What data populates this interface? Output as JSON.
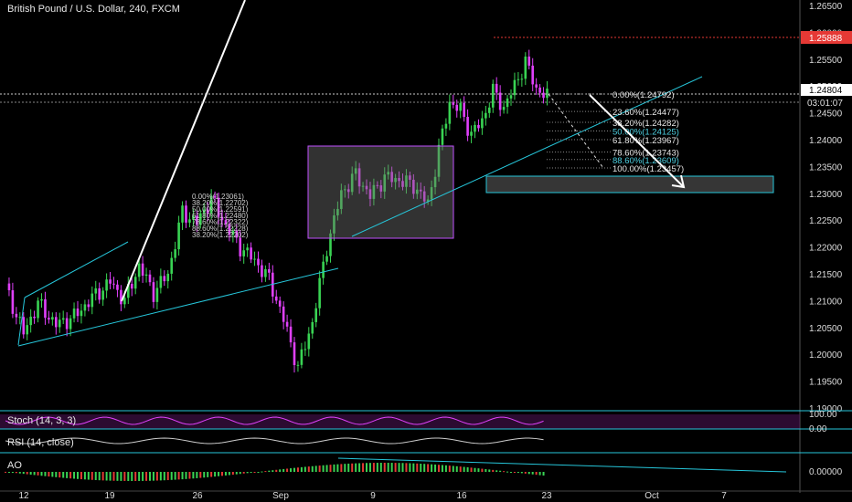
{
  "header": {
    "title": "British Pound / U.S. Dollar, 240, FXCM"
  },
  "price_axis": {
    "ticks": [
      "1.26500",
      "1.26000",
      "1.25500",
      "1.25000",
      "1.24500",
      "1.24000",
      "1.23500",
      "1.23000",
      "1.22500",
      "1.22000",
      "1.21500",
      "1.21000",
      "1.20500",
      "1.20000",
      "1.19500",
      "1.19000"
    ],
    "high_tag": "1.25888",
    "last_price_tag": "1.24804",
    "countdown_tag": "03:01:07",
    "high_color": "#e53935"
  },
  "time_axis": {
    "labels": [
      "12",
      "19",
      "26",
      "Sep",
      "9",
      "16",
      "23",
      "Oct",
      "7"
    ]
  },
  "fib_main": {
    "levels": [
      {
        "label": "0.00%(1.24792)",
        "ratio": 0.0
      },
      {
        "label": "23.60%(1.24477)",
        "ratio": 0.236
      },
      {
        "label": "38.20%(1.24282)",
        "ratio": 0.382
      },
      {
        "label": "50.00%(1.24125)",
        "ratio": 0.5
      },
      {
        "label": "61.80%(1.23967)",
        "ratio": 0.618
      },
      {
        "label": "78.60%(1.23743)",
        "ratio": 0.786
      },
      {
        "label": "88.60%(1.23609)",
        "ratio": 0.886
      },
      {
        "label": "100.00%(1.23457)",
        "ratio": 1.0
      }
    ],
    "highlight_color": "#4dd0e1"
  },
  "fib_old": {
    "levels": [
      "0.00%(1.23061)",
      "38.20%(1.22702)",
      "50.00%(1.22591)",
      "61.80%(1.22480)",
      "78.60%(1.22322)",
      "88.60%(1.22228)",
      "38.20%(1.22202)"
    ]
  },
  "indicators": {
    "stoch": {
      "label": "Stoch (14, 3, 3)",
      "ticks": [
        "100.00",
        "0.00"
      ]
    },
    "rsi": {
      "label": "RSI (14, close)"
    },
    "ao": {
      "label": "AO",
      "ticks": [
        "0.00000"
      ]
    }
  },
  "colors": {
    "up": "#39d353",
    "down": "#e040fb",
    "trend": "#26c6da",
    "box": "#c050ff"
  },
  "chart_data": {
    "type": "candlestick",
    "symbol": "British Pound / U.S. Dollar",
    "interval": "240",
    "source": "FXCM",
    "ylim": [
      1.19,
      1.265
    ],
    "anchors": [
      [
        0,
        1.2125
      ],
      [
        5,
        1.204
      ],
      [
        9,
        1.2095
      ],
      [
        14,
        1.2055
      ],
      [
        19,
        1.207
      ],
      [
        24,
        1.2105
      ],
      [
        29,
        1.2135
      ],
      [
        33,
        1.21
      ],
      [
        37,
        1.2165
      ],
      [
        41,
        1.2115
      ],
      [
        45,
        1.215
      ],
      [
        49,
        1.2265
      ],
      [
        53,
        1.2245
      ],
      [
        57,
        1.229
      ],
      [
        61,
        1.224
      ],
      [
        65,
        1.22
      ],
      [
        69,
        1.2175
      ],
      [
        73,
        1.214
      ],
      [
        77,
        1.2065
      ],
      [
        81,
        1.1975
      ],
      [
        85,
        1.206
      ],
      [
        89,
        1.22
      ],
      [
        93,
        1.23
      ],
      [
        97,
        1.2335
      ],
      [
        101,
        1.2295
      ],
      [
        105,
        1.233
      ],
      [
        109,
        1.2325
      ],
      [
        113,
        1.2315
      ],
      [
        117,
        1.228
      ],
      [
        120,
        1.238
      ],
      [
        123,
        1.247
      ],
      [
        126,
        1.2455
      ],
      [
        129,
        1.241
      ],
      [
        132,
        1.2435
      ],
      [
        135,
        1.249
      ],
      [
        138,
        1.246
      ],
      [
        141,
        1.25
      ],
      [
        144,
        1.2545
      ],
      [
        147,
        1.2495
      ],
      [
        150,
        1.248
      ]
    ]
  }
}
